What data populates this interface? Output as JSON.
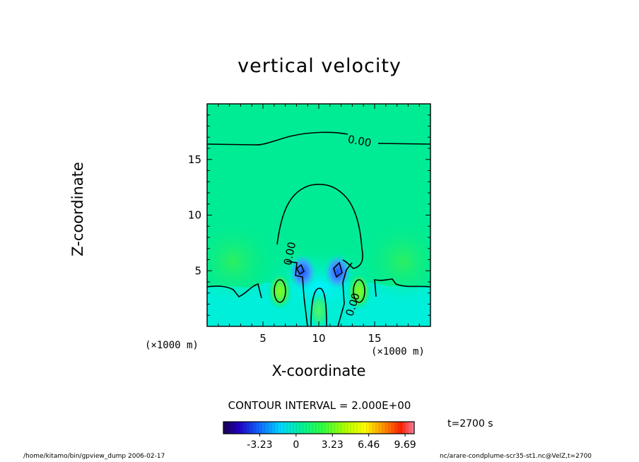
{
  "chart_data": {
    "type": "heatmap",
    "title": "vertical velocity",
    "xlabel": "X-coordinate",
    "ylabel": "Z-coordinate",
    "x_unit": "(×1000 m)",
    "z_unit": "(×1000 m)",
    "xlim": [
      0,
      20
    ],
    "ylim": [
      0,
      20
    ],
    "x_ticks": [
      5,
      10,
      15
    ],
    "y_ticks": [
      5,
      10,
      15
    ],
    "contour_interval": "CONTOUR INTERVAL = 2.000E+00",
    "contour_labels": [
      "0.00",
      "0.00",
      "0.00"
    ],
    "colorbar": {
      "tick_labels": [
        "-3.23",
        "0",
        "3.23",
        "6.46",
        "9.69"
      ],
      "tick_values": [
        -3.23,
        0,
        3.23,
        6.46,
        9.69
      ],
      "range": [
        -6.46,
        10.5
      ]
    },
    "time_label": "t=2700 s"
  },
  "footer": {
    "left": "/home/kitamo/bin/gpview_dump  2006-02-17",
    "right": "nc/arare-condplume-scr35-st1.nc@VelZ,t=2700"
  },
  "colors": {
    "background_field": "#00ec94",
    "plume_core": "#00f0e0",
    "downdraft": "#4070ff",
    "updraft": "#60ff40"
  }
}
